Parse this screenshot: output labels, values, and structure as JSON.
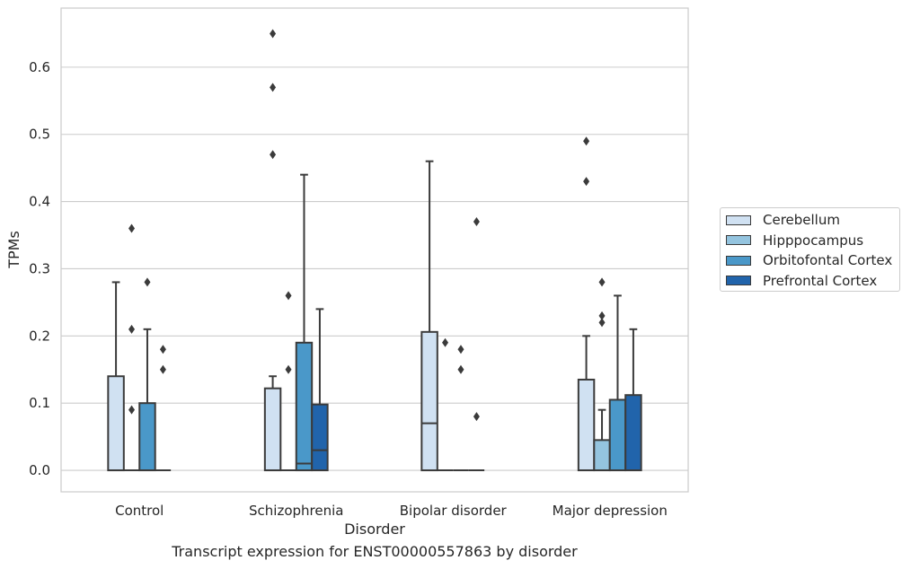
{
  "chart_data": {
    "type": "box",
    "title": "",
    "caption": "Transcript expression for ENST00000557863 by disorder",
    "xlabel": "Disorder",
    "ylabel": "TPMs",
    "ylim": [
      -0.032,
      0.688
    ],
    "yticks": [
      "0.0",
      "0.1",
      "0.2",
      "0.3",
      "0.4",
      "0.5",
      "0.6"
    ],
    "ytick_values": [
      0.0,
      0.1,
      0.2,
      0.3,
      0.4,
      0.5,
      0.6
    ],
    "grid": true,
    "legend_position": "right",
    "categories": [
      "Control",
      "Schizophrenia",
      "Bipolar disorder",
      "Major depression"
    ],
    "series": [
      {
        "name": "Cerebellum",
        "color": "#d0e1f2",
        "boxes": [
          {
            "q1": 0.0,
            "median": 0.0,
            "q3": 0.14,
            "whisker_low": 0.0,
            "whisker_high": 0.28,
            "outliers": []
          },
          {
            "q1": 0.0,
            "median": 0.0,
            "q3": 0.122,
            "whisker_low": 0.0,
            "whisker_high": 0.14,
            "outliers": [
              0.47,
              0.57,
              0.65
            ]
          },
          {
            "q1": 0.0,
            "median": 0.07,
            "q3": 0.206,
            "whisker_low": 0.0,
            "whisker_high": 0.46,
            "outliers": []
          },
          {
            "q1": 0.0,
            "median": 0.0,
            "q3": 0.135,
            "whisker_low": 0.0,
            "whisker_high": 0.2,
            "outliers": [
              0.43,
              0.49
            ]
          }
        ]
      },
      {
        "name": "Hipppocampus",
        "color": "#94c4df",
        "boxes": [
          {
            "q1": 0.0,
            "median": 0.0,
            "q3": 0.0,
            "whisker_low": 0.0,
            "whisker_high": 0.0,
            "outliers": [
              0.09,
              0.21,
              0.36
            ]
          },
          {
            "q1": 0.0,
            "median": 0.0,
            "q3": 0.0,
            "whisker_low": 0.0,
            "whisker_high": 0.0,
            "outliers": [
              0.15,
              0.26
            ]
          },
          {
            "q1": 0.0,
            "median": 0.0,
            "q3": 0.0,
            "whisker_low": 0.0,
            "whisker_high": 0.0,
            "outliers": [
              0.19
            ]
          },
          {
            "q1": 0.0,
            "median": 0.0,
            "q3": 0.045,
            "whisker_low": 0.0,
            "whisker_high": 0.09,
            "outliers": [
              0.22,
              0.23,
              0.28
            ]
          }
        ]
      },
      {
        "name": "Orbitofontal Cortex",
        "color": "#4a98c9",
        "boxes": [
          {
            "q1": 0.0,
            "median": 0.0,
            "q3": 0.1,
            "whisker_low": 0.0,
            "whisker_high": 0.21,
            "outliers": [
              0.28
            ]
          },
          {
            "q1": 0.0,
            "median": 0.01,
            "q3": 0.19,
            "whisker_low": 0.0,
            "whisker_high": 0.44,
            "outliers": []
          },
          {
            "q1": 0.0,
            "median": 0.0,
            "q3": 0.0,
            "whisker_low": 0.0,
            "whisker_high": 0.0,
            "outliers": [
              0.15,
              0.18
            ]
          },
          {
            "q1": 0.0,
            "median": 0.0,
            "q3": 0.105,
            "whisker_low": 0.0,
            "whisker_high": 0.26,
            "outliers": []
          }
        ]
      },
      {
        "name": "Prefrontal Cortex",
        "color": "#2164ab",
        "boxes": [
          {
            "q1": 0.0,
            "median": 0.0,
            "q3": 0.0,
            "whisker_low": 0.0,
            "whisker_high": 0.0,
            "outliers": [
              0.15,
              0.18
            ]
          },
          {
            "q1": 0.0,
            "median": 0.03,
            "q3": 0.098,
            "whisker_low": 0.0,
            "whisker_high": 0.24,
            "outliers": []
          },
          {
            "q1": 0.0,
            "median": 0.0,
            "q3": 0.0,
            "whisker_low": 0.0,
            "whisker_high": 0.0,
            "outliers": [
              0.08,
              0.37
            ]
          },
          {
            "q1": 0.0,
            "median": 0.0,
            "q3": 0.112,
            "whisker_low": 0.0,
            "whisker_high": 0.21,
            "outliers": []
          }
        ]
      }
    ]
  }
}
